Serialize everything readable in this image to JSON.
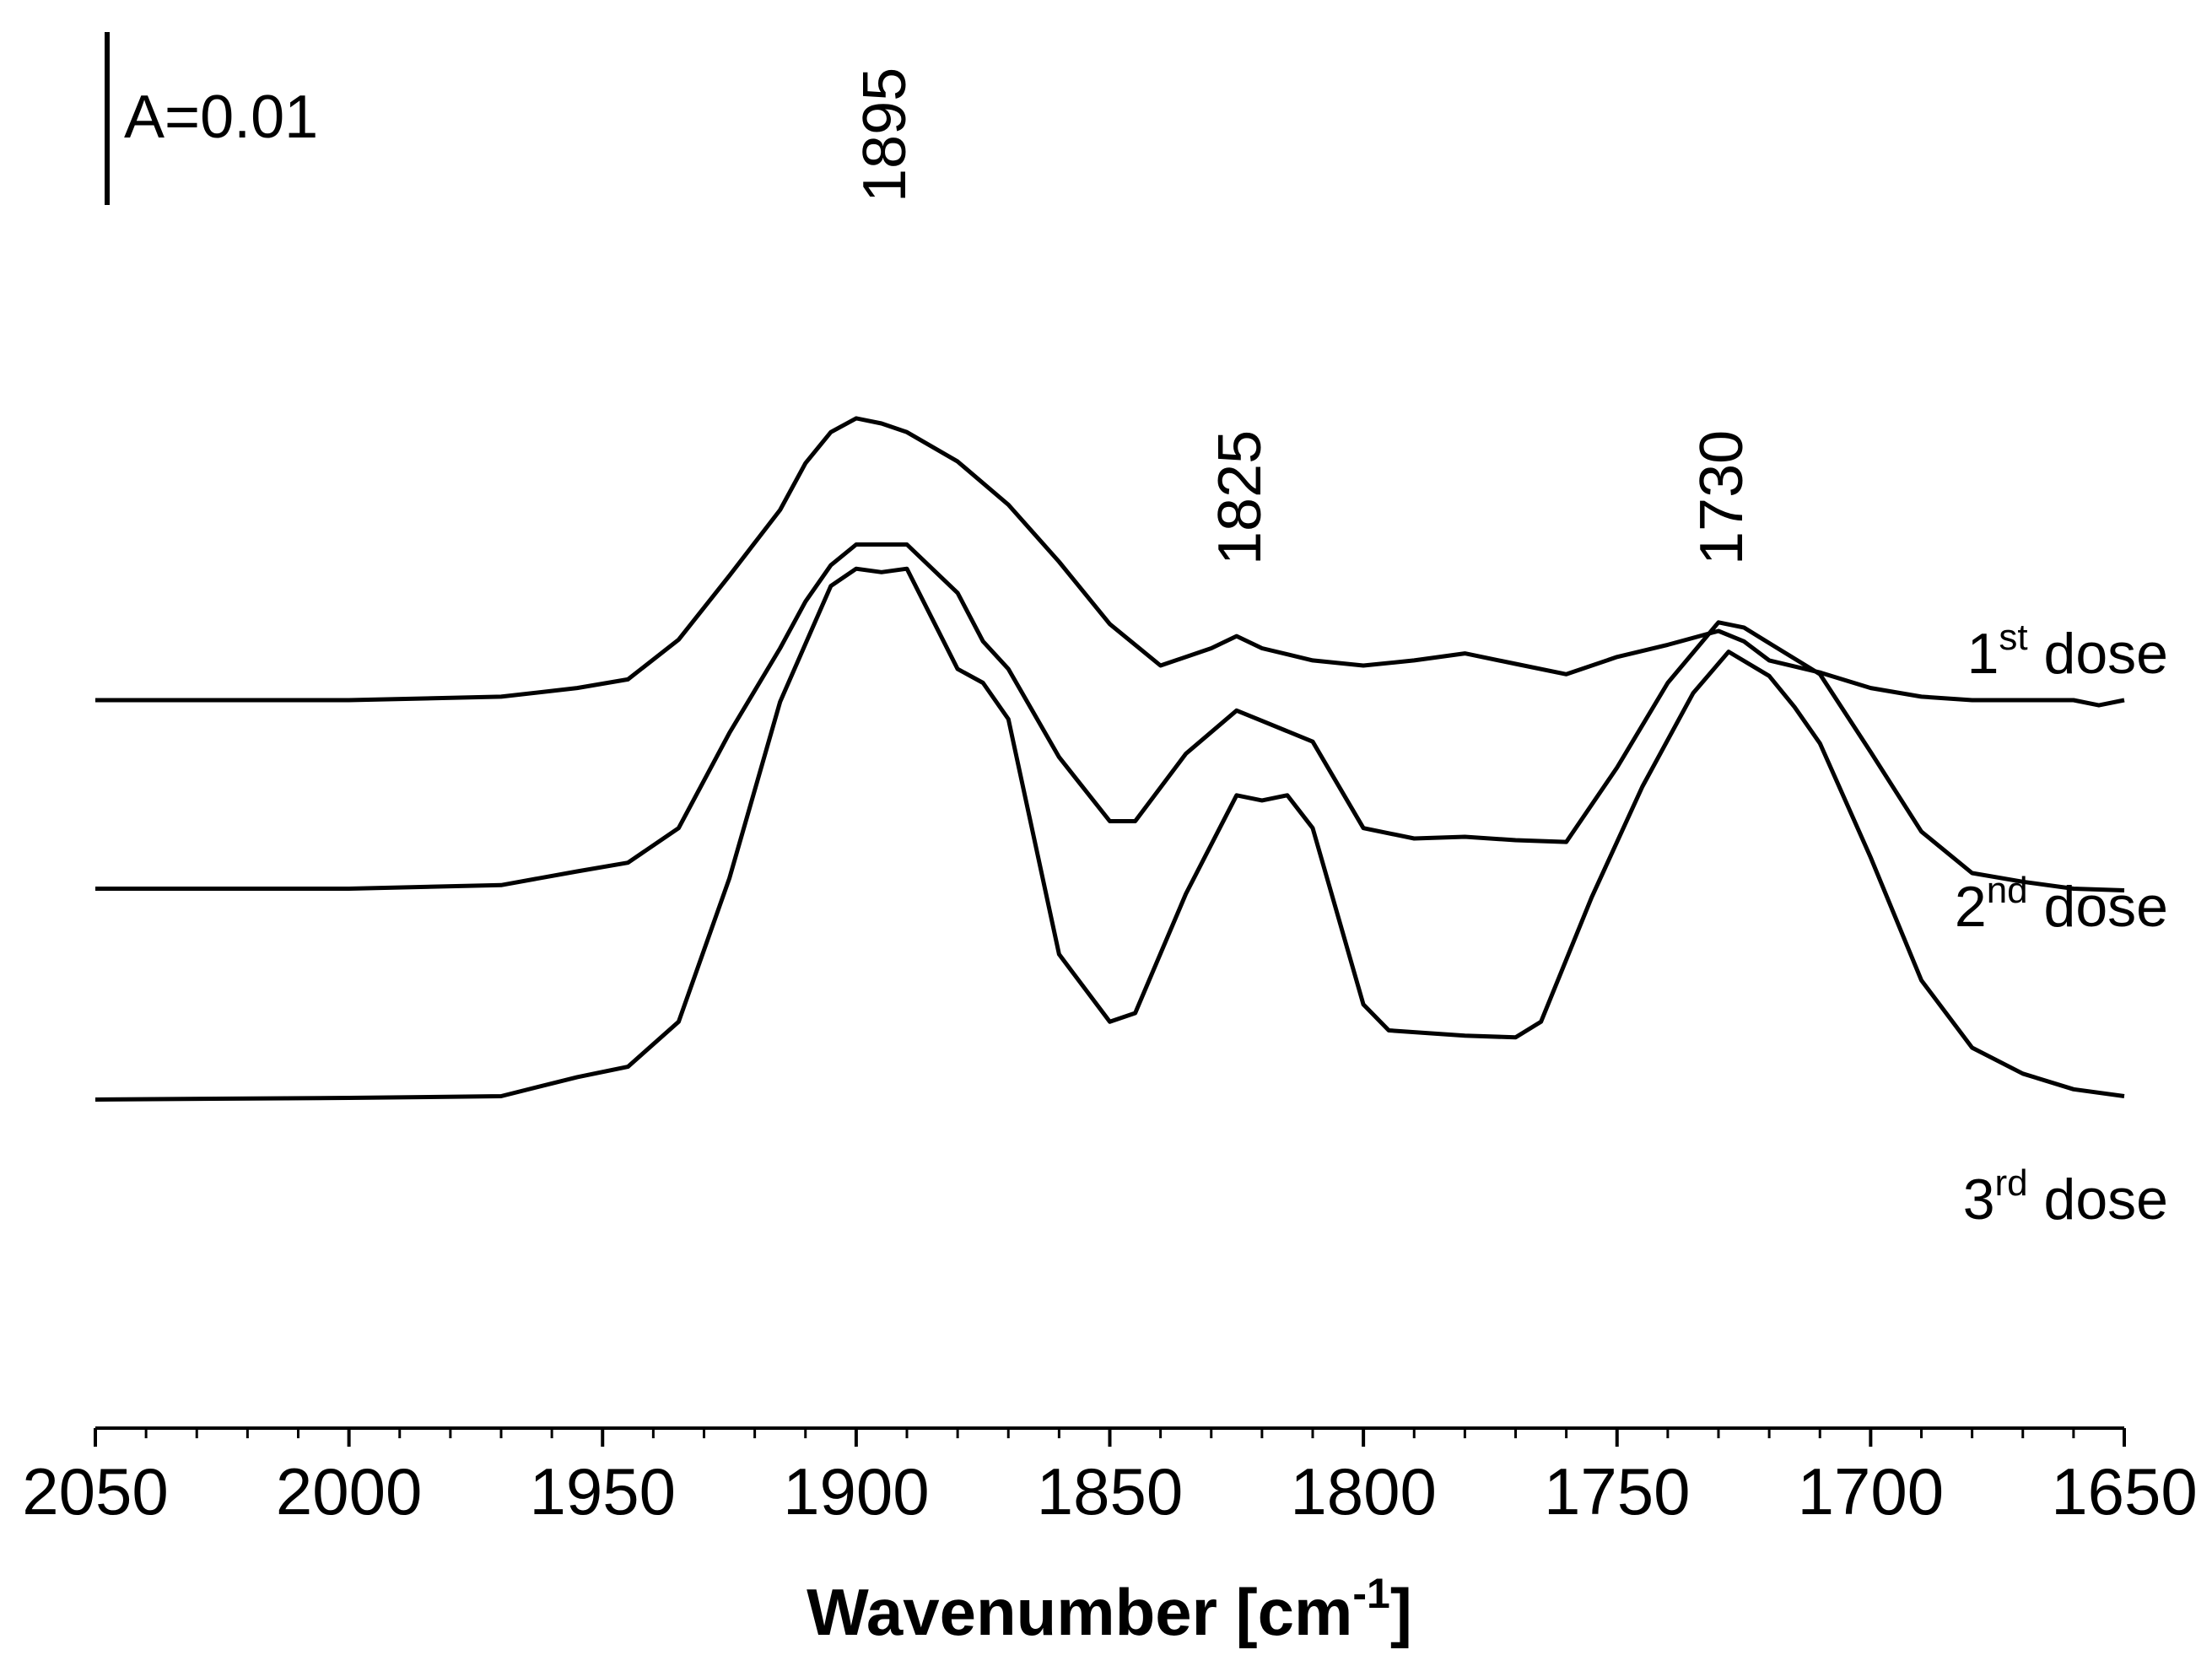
{
  "chart_data": {
    "type": "line",
    "title": "",
    "xlabel": "Wavenumber [cm",
    "xlabel_sup": "-1",
    "xlabel_close": "]",
    "ylabel": "",
    "xlim": [
      2050,
      1650
    ],
    "x_reversed": true,
    "x_ticks": [
      2050,
      2000,
      1950,
      1900,
      1850,
      1800,
      1750,
      1700,
      1650
    ],
    "x_tick_labels": [
      "2050",
      "2000",
      "1950",
      "1900",
      "1850",
      "1800",
      "1750",
      "1700",
      "1650"
    ],
    "grid": false,
    "legend": "none",
    "scale_bar": {
      "label": "A=0.01",
      "value": 0.01
    },
    "peak_labels": [
      {
        "text": "1895",
        "x": 1895
      },
      {
        "text": "1825",
        "x": 1825
      },
      {
        "text": "1730",
        "x": 1730
      }
    ],
    "series": [
      {
        "name": "1st dose",
        "label_num": "1",
        "label_sup": "st",
        "label_text": " dose",
        "offset": 0.0,
        "x": [
          2050,
          2000,
          1970,
          1955,
          1945,
          1935,
          1925,
          1915,
          1910,
          1905,
          1900,
          1895,
          1890,
          1880,
          1870,
          1860,
          1850,
          1840,
          1830,
          1825,
          1820,
          1810,
          1800,
          1790,
          1780,
          1770,
          1760,
          1750,
          1740,
          1730,
          1725,
          1720,
          1710,
          1700,
          1690,
          1680,
          1670,
          1660,
          1655,
          1650
        ],
        "values": [
          0.0,
          0.0,
          0.0002,
          0.0007,
          0.0012,
          0.0035,
          0.0072,
          0.011,
          0.0137,
          0.0155,
          0.0163,
          0.016,
          0.0155,
          0.0138,
          0.0113,
          0.008,
          0.0044,
          0.002,
          0.003,
          0.0037,
          0.003,
          0.0023,
          0.002,
          0.0023,
          0.0027,
          0.0021,
          0.0015,
          0.0025,
          0.0032,
          0.004,
          0.0034,
          0.0023,
          0.0016,
          0.0007,
          0.0002,
          0.0,
          0.0,
          0.0,
          -0.0003,
          0.0
        ]
      },
      {
        "name": "2nd dose",
        "label_num": "2",
        "label_sup": "nd",
        "label_text": " dose",
        "offset": -0.011,
        "x": [
          2050,
          2000,
          1970,
          1955,
          1945,
          1935,
          1925,
          1915,
          1910,
          1905,
          1900,
          1895,
          1890,
          1880,
          1875,
          1870,
          1860,
          1850,
          1845,
          1835,
          1825,
          1820,
          1810,
          1800,
          1790,
          1780,
          1770,
          1760,
          1750,
          1740,
          1730,
          1725,
          1720,
          1710,
          1700,
          1690,
          1680,
          1670,
          1660,
          1650
        ],
        "values": [
          0.0001,
          0.0001,
          0.0003,
          0.0011,
          0.0016,
          0.0036,
          0.0091,
          0.014,
          0.0167,
          0.0188,
          0.02,
          0.02,
          0.02,
          0.0172,
          0.0144,
          0.0128,
          0.0077,
          0.004,
          0.004,
          0.0079,
          0.0104,
          0.0098,
          0.0086,
          0.0036,
          0.003,
          0.0031,
          0.0029,
          0.0028,
          0.0071,
          0.012,
          0.0155,
          0.0152,
          0.0143,
          0.0125,
          0.008,
          0.0034,
          0.001,
          0.0005,
          0.0001,
          0.0
        ]
      },
      {
        "name": "3rd dose",
        "label_num": "3",
        "label_sup": "rd",
        "label_text": " dose",
        "offset": -0.0231,
        "x": [
          2050,
          2000,
          1970,
          1955,
          1945,
          1935,
          1925,
          1915,
          1905,
          1900,
          1895,
          1890,
          1880,
          1875,
          1870,
          1860,
          1850,
          1845,
          1835,
          1825,
          1820,
          1815,
          1810,
          1800,
          1795,
          1780,
          1770,
          1765,
          1755,
          1745,
          1735,
          1728,
          1720,
          1715,
          1710,
          1700,
          1690,
          1680,
          1670,
          1660,
          1650
        ],
        "values": [
          0.0,
          0.0001,
          0.0002,
          0.0013,
          0.0019,
          0.0045,
          0.0128,
          0.023,
          0.0297,
          0.0307,
          0.0305,
          0.0307,
          0.0249,
          0.0241,
          0.022,
          0.0084,
          0.0045,
          0.005,
          0.0119,
          0.0176,
          0.0173,
          0.0176,
          0.0157,
          0.0055,
          0.004,
          0.0037,
          0.0036,
          0.0045,
          0.0117,
          0.0181,
          0.0235,
          0.0259,
          0.0245,
          0.0227,
          0.0206,
          0.014,
          0.0069,
          0.003,
          0.0015,
          0.0006,
          0.0002
        ]
      }
    ]
  }
}
